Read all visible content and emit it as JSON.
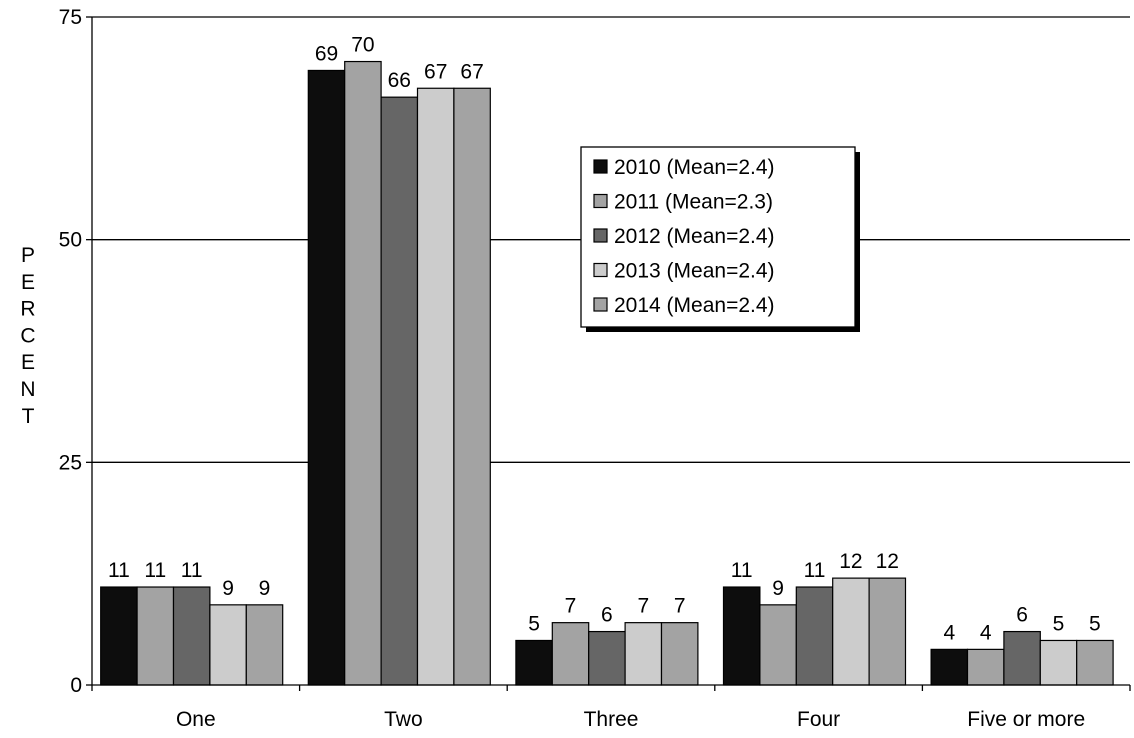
{
  "chart_data": {
    "type": "bar",
    "ylabel": "PERCENT",
    "ylim": [
      0,
      75
    ],
    "yticks": [
      "0",
      "25",
      "50",
      "75"
    ],
    "grid": true,
    "legend_position": "top-right",
    "categories": [
      "One",
      "Two",
      "Three",
      "Four",
      "Five or more"
    ],
    "series": [
      {
        "name": "2010 (Mean=2.4)",
        "color": "#0d0d0d",
        "values": [
          11,
          69,
          5,
          11,
          4
        ]
      },
      {
        "name": "2011 (Mean=2.3)",
        "color": "#a3a3a3",
        "values": [
          11,
          70,
          7,
          9,
          4
        ]
      },
      {
        "name": "2012 (Mean=2.4)",
        "color": "#666666",
        "values": [
          11,
          66,
          6,
          11,
          6
        ]
      },
      {
        "name": "2013 (Mean=2.4)",
        "color": "#cccccc",
        "values": [
          9,
          67,
          7,
          12,
          5
        ]
      },
      {
        "name": "2014 (Mean=2.4)",
        "color": "#a3a3a3",
        "values": [
          9,
          67,
          7,
          12,
          5
        ]
      }
    ]
  }
}
